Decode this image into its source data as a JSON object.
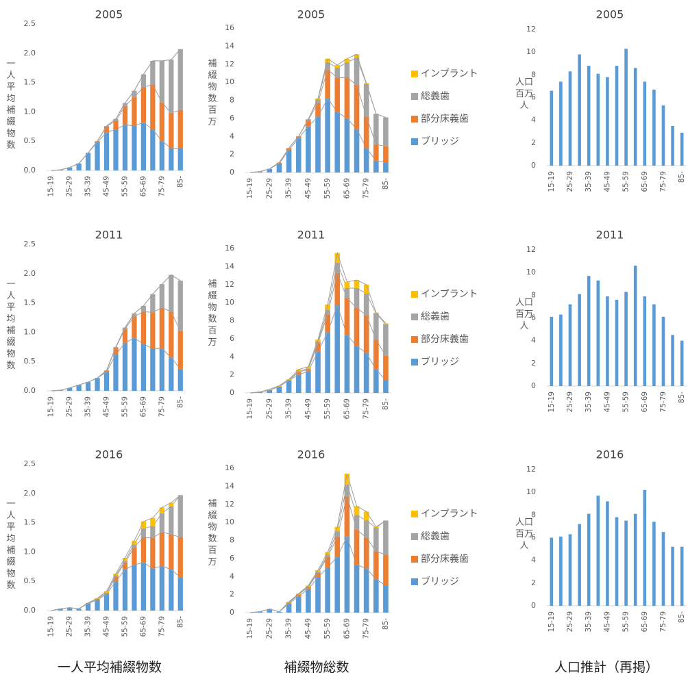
{
  "chart_data": [
    {
      "type": "bar",
      "stacked": true,
      "title": "2005",
      "ylabel": "一人平均補綴物数",
      "categories": [
        "15-19",
        null,
        "25-29",
        null,
        "35-39",
        null,
        "45-49",
        null,
        "55-59",
        null,
        "65-69",
        null,
        "75-79",
        null,
        "85-"
      ],
      "series": [
        {
          "color": "#5b9bd5",
          "values": [
            0,
            0.01,
            0.05,
            0.12,
            0.3,
            0.48,
            0.65,
            0.7,
            0.78,
            0.76,
            0.82,
            0.7,
            0.5,
            0.38,
            0.38
          ]
        },
        {
          "color": "#ed7d31",
          "values": [
            0,
            0,
            0,
            0,
            0,
            0.02,
            0.1,
            0.15,
            0.32,
            0.49,
            0.6,
            0.77,
            0.66,
            0.6,
            0.65
          ]
        },
        {
          "color": "#a5a5a5",
          "values": [
            0,
            0,
            0,
            0,
            0,
            0,
            0.01,
            0.03,
            0.05,
            0.11,
            0.22,
            0.4,
            0.71,
            0.91,
            1.04
          ]
        },
        {
          "color": "#ffc000",
          "values": [
            0,
            0,
            0,
            0,
            0,
            0,
            0,
            0,
            0,
            0,
            0,
            0,
            0,
            0,
            0
          ]
        }
      ],
      "ylim": [
        0,
        2.5
      ],
      "yticks": [
        {
          "value": 0,
          "label": "0.0"
        },
        0.5,
        {
          "value": 1,
          "label": "1.0"
        },
        1.5,
        {
          "value": 2,
          "label": "2.0"
        },
        2.5
      ],
      "grid": false
    },
    {
      "type": "bar",
      "stacked": true,
      "title": "2005",
      "ylabel": "補綴物数 百万",
      "legend": "right",
      "categories": [
        "15-19",
        null,
        "25-29",
        null,
        "35-39",
        null,
        "45-49",
        null,
        "55-59",
        null,
        "65-69",
        null,
        "75-79",
        null,
        "85-"
      ],
      "series": [
        {
          "name": "ブリッジ",
          "color": "#5b9bd5",
          "values": [
            0,
            0.1,
            0.4,
            1.0,
            2.5,
            3.8,
            5.1,
            6.2,
            8.2,
            6.7,
            6.0,
            4.8,
            2.7,
            1.3,
            1.1
          ]
        },
        {
          "name": "部分床義歯",
          "color": "#ed7d31",
          "values": [
            0,
            0,
            0,
            0.1,
            0.2,
            0.2,
            0.7,
            1.5,
            3.2,
            3.8,
            4.5,
            4.9,
            3.5,
            1.8,
            1.8
          ]
        },
        {
          "name": "総義歯",
          "color": "#a5a5a5",
          "values": [
            0,
            0,
            0,
            0,
            0,
            0,
            0.1,
            0.4,
            0.8,
            1.1,
            1.7,
            3.0,
            3.6,
            3.4,
            3.2
          ]
        },
        {
          "name": "インプラント",
          "color": "#ffc000",
          "values": [
            0,
            0,
            0,
            0,
            0,
            0,
            0,
            0.1,
            0.4,
            0.3,
            0.4,
            0.4,
            0.1,
            0,
            0
          ]
        }
      ],
      "ylim": [
        0,
        16
      ],
      "yticks": [
        0,
        2,
        4,
        6,
        8,
        10,
        12,
        14,
        16
      ],
      "grid": false
    },
    {
      "type": "bar",
      "title": "2005",
      "ylabel": "人口 百万人",
      "color": "#5b9bd5",
      "categories": [
        "15-19",
        null,
        "25-29",
        null,
        "35-39",
        null,
        "45-49",
        null,
        "55-59",
        null,
        "65-69",
        null,
        "75-79",
        null,
        "85-"
      ],
      "values": [
        6.6,
        7.4,
        8.3,
        9.8,
        8.8,
        8.1,
        7.8,
        8.8,
        10.3,
        8.6,
        7.4,
        6.7,
        5.3,
        3.5,
        2.9
      ],
      "ylim": [
        0,
        12
      ],
      "yticks": [
        0,
        2,
        4,
        6,
        8,
        10,
        12
      ],
      "grid": false
    },
    {
      "type": "bar",
      "stacked": true,
      "title": "2011",
      "ylabel": "一人平均補綴物数",
      "categories": [
        "15-19",
        null,
        "25-29",
        null,
        "35-39",
        null,
        "45-49",
        null,
        "55-59",
        null,
        "65-69",
        null,
        "75-79",
        null,
        "85-"
      ],
      "series": [
        {
          "color": "#5b9bd5",
          "values": [
            0,
            0.01,
            0.05,
            0.1,
            0.15,
            0.22,
            0.32,
            0.62,
            0.82,
            0.9,
            0.8,
            0.72,
            0.72,
            0.57,
            0.37
          ]
        },
        {
          "color": "#ed7d31",
          "values": [
            0,
            0,
            0,
            0,
            0,
            0,
            0.02,
            0.12,
            0.24,
            0.37,
            0.55,
            0.62,
            0.7,
            0.78,
            0.65
          ]
        },
        {
          "color": "#a5a5a5",
          "values": [
            0,
            0,
            0,
            0,
            0,
            0,
            0.01,
            0.01,
            0.02,
            0.05,
            0.1,
            0.31,
            0.4,
            0.63,
            0.86
          ]
        },
        {
          "color": "#ffc000",
          "values": [
            0,
            0,
            0,
            0,
            0,
            0,
            0,
            0,
            0,
            0,
            0,
            0,
            0,
            0,
            0
          ]
        }
      ],
      "ylim": [
        0,
        2.5
      ],
      "yticks": [
        {
          "value": 0,
          "label": "0.0"
        },
        0.5,
        {
          "value": 1,
          "label": "1.0"
        },
        1.5,
        {
          "value": 2,
          "label": "2.0"
        },
        2.5
      ],
      "grid": false
    },
    {
      "type": "bar",
      "stacked": true,
      "title": "2011",
      "ylabel": "補綴物数 百万",
      "legend": "right",
      "categories": [
        "15-19",
        null,
        "25-29",
        null,
        "35-39",
        null,
        "45-49",
        null,
        "55-59",
        null,
        "65-69",
        null,
        "75-79",
        null,
        "85-"
      ],
      "series": [
        {
          "name": "ブリッジ",
          "color": "#5b9bd5",
          "values": [
            0,
            0.1,
            0.3,
            0.7,
            1.4,
            2.0,
            2.4,
            4.6,
            6.7,
            9.7,
            6.4,
            5.2,
            4.4,
            2.6,
            1.4
          ]
        },
        {
          "name": "部分床義歯",
          "color": "#ed7d31",
          "values": [
            0,
            0,
            0,
            0,
            0,
            0.3,
            0.2,
            0.9,
            2.0,
            3.6,
            4.1,
            4.2,
            4.2,
            3.3,
            2.7
          ]
        },
        {
          "name": "総義歯",
          "color": "#a5a5a5",
          "values": [
            0,
            0,
            0,
            0,
            0,
            0.1,
            0.1,
            0.2,
            0.5,
            1.1,
            1.1,
            2.2,
            2.4,
            2.9,
            3.5
          ]
        },
        {
          "name": "インプラント",
          "color": "#ffc000",
          "values": [
            0,
            0,
            0.1,
            0.1,
            0.1,
            0.2,
            0.2,
            0.2,
            0.6,
            1.1,
            0.7,
            0.9,
            1.0,
            0.1,
            0.1
          ]
        }
      ],
      "ylim": [
        0,
        16
      ],
      "yticks": [
        0,
        2,
        4,
        6,
        8,
        10,
        12,
        14,
        16
      ],
      "grid": false
    },
    {
      "type": "bar",
      "title": "2011",
      "ylabel": "人口 百万人",
      "color": "#5b9bd5",
      "categories": [
        "15-19",
        null,
        "25-29",
        null,
        "35-39",
        null,
        "45-49",
        null,
        "55-59",
        null,
        "65-69",
        null,
        "75-79",
        null,
        "85-"
      ],
      "values": [
        6.1,
        6.3,
        7.2,
        8.1,
        9.7,
        9.3,
        7.9,
        7.6,
        8.3,
        10.6,
        7.9,
        7.2,
        6.1,
        4.5,
        4.0
      ],
      "ylim": [
        0,
        12
      ],
      "yticks": [
        0,
        2,
        4,
        6,
        8,
        10,
        12
      ],
      "grid": false
    },
    {
      "type": "bar",
      "stacked": true,
      "title": "2016",
      "ylabel": "一人平均補綴物数",
      "categories": [
        "15-19",
        null,
        "25-29",
        null,
        "35-39",
        null,
        "45-49",
        null,
        "55-59",
        null,
        "65-69",
        null,
        "75-79",
        null,
        "85-"
      ],
      "series": [
        {
          "color": "#5b9bd5",
          "values": [
            0,
            0.03,
            0.05,
            0.03,
            0.12,
            0.18,
            0.28,
            0.5,
            0.7,
            0.78,
            0.82,
            0.72,
            0.76,
            0.7,
            0.57
          ]
        },
        {
          "color": "#ed7d31",
          "values": [
            0,
            0,
            0,
            0,
            0.01,
            0.02,
            0.02,
            0.08,
            0.12,
            0.3,
            0.43,
            0.52,
            0.58,
            0.6,
            0.68
          ]
        },
        {
          "color": "#a5a5a5",
          "values": [
            0,
            0,
            0,
            0,
            0,
            0,
            0,
            0.02,
            0.03,
            0.05,
            0.15,
            0.2,
            0.32,
            0.48,
            0.72
          ]
        },
        {
          "color": "#ffc000",
          "values": [
            0,
            0,
            0,
            0,
            0,
            0.01,
            0.03,
            0.03,
            0.05,
            0.06,
            0.12,
            0.14,
            0.1,
            0.06,
            0
          ]
        }
      ],
      "ylim": [
        0,
        2.5
      ],
      "yticks": [
        {
          "value": 0,
          "label": "0.0"
        },
        0.5,
        {
          "value": 1,
          "label": "1.0"
        },
        1.5,
        {
          "value": 2,
          "label": "2.0"
        },
        2.5
      ],
      "grid": false
    },
    {
      "type": "bar",
      "stacked": true,
      "title": "2016",
      "ylabel": "補綴物数 百万",
      "legend": "right",
      "categories": [
        "15-19",
        null,
        "25-29",
        null,
        "35-39",
        null,
        "45-49",
        null,
        "55-59",
        null,
        "65-69",
        null,
        "75-79",
        null,
        "85-"
      ],
      "series": [
        {
          "name": "ブリッジ",
          "color": "#5b9bd5",
          "values": [
            0,
            0.1,
            0.4,
            0.1,
            1.0,
            1.8,
            2.6,
            3.9,
            5.0,
            6.2,
            8.4,
            5.3,
            4.9,
            3.7,
            3.0
          ]
        },
        {
          "name": "部分床義歯",
          "color": "#ed7d31",
          "values": [
            0,
            0,
            0,
            0,
            0.1,
            0.2,
            0.2,
            0.5,
            1.2,
            2.2,
            4.5,
            3.9,
            3.4,
            3.1,
            3.4
          ]
        },
        {
          "name": "総義歯",
          "color": "#a5a5a5",
          "values": [
            0,
            0,
            0,
            0,
            0,
            0,
            0.1,
            0.1,
            0.2,
            0.6,
            1.3,
            1.6,
            1.9,
            2.6,
            3.8
          ]
        },
        {
          "name": "インプラント",
          "color": "#ffc000",
          "values": [
            0,
            0,
            0,
            0,
            0.1,
            0.1,
            0.1,
            0.2,
            0.3,
            0.5,
            1.2,
            1.0,
            1.0,
            0.1,
            0
          ]
        }
      ],
      "ylim": [
        0,
        16
      ],
      "yticks": [
        0,
        2,
        4,
        6,
        8,
        10,
        12,
        14,
        16
      ],
      "grid": false
    },
    {
      "type": "bar",
      "title": "2016",
      "ylabel": "人口 百万人",
      "color": "#5b9bd5",
      "categories": [
        "15-19",
        null,
        "25-29",
        null,
        "35-39",
        null,
        "45-49",
        null,
        "55-59",
        null,
        "65-69",
        null,
        "75-79",
        null,
        "85-"
      ],
      "values": [
        6.0,
        6.1,
        6.3,
        7.2,
        8.1,
        9.7,
        9.2,
        7.8,
        7.5,
        8.1,
        10.2,
        7.4,
        6.5,
        5.2,
        5.2
      ],
      "ylim": [
        0,
        12
      ],
      "yticks": [
        0,
        2,
        4,
        6,
        8,
        10,
        12
      ],
      "grid": false
    }
  ],
  "captions": [
    "一人平均補綴物数",
    "補綴物総数",
    "人口推計（再掲）"
  ]
}
